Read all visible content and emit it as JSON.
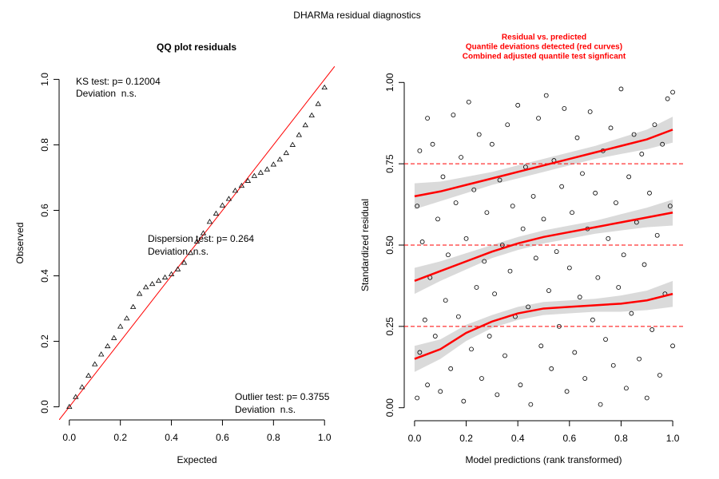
{
  "title": "DHARMa residual diagnostics",
  "chart_data": [
    {
      "type": "qq",
      "title": "QQ plot residuals",
      "x_label": "Expected",
      "y_label": "Observed",
      "color": "#000000",
      "reference_color": "#ff0000",
      "xlim": [
        -0.04,
        1.04
      ],
      "ylim": [
        -0.04,
        1.04
      ],
      "xticks": [
        {
          "value": 0,
          "label": "0.0"
        },
        {
          "value": 0.2,
          "label": "0.2"
        },
        {
          "value": 0.4,
          "label": "0.4"
        },
        {
          "value": 0.6,
          "label": "0.6"
        },
        {
          "value": 0.8,
          "label": "0.8"
        },
        {
          "value": 1,
          "label": "1.0"
        }
      ],
      "yticks": [
        {
          "value": 0,
          "label": "0.0"
        },
        {
          "value": 0.2,
          "label": "0.2"
        },
        {
          "value": 0.4,
          "label": "0.4"
        },
        {
          "value": 0.6,
          "label": "0.6"
        },
        {
          "value": 0.8,
          "label": "0.8"
        },
        {
          "value": 1,
          "label": "1.0"
        }
      ],
      "x": [
        0,
        0.025,
        0.05,
        0.075,
        0.1,
        0.125,
        0.15,
        0.175,
        0.2,
        0.225,
        0.25,
        0.275,
        0.3,
        0.325,
        0.35,
        0.375,
        0.4,
        0.425,
        0.45,
        0.475,
        0.5,
        0.525,
        0.55,
        0.575,
        0.6,
        0.625,
        0.65,
        0.675,
        0.7,
        0.725,
        0.75,
        0.775,
        0.8,
        0.825,
        0.85,
        0.875,
        0.9,
        0.925,
        0.95,
        0.975,
        1
      ],
      "values": [
        0,
        0.03,
        0.06,
        0.095,
        0.13,
        0.16,
        0.185,
        0.21,
        0.245,
        0.27,
        0.305,
        0.345,
        0.365,
        0.375,
        0.385,
        0.395,
        0.405,
        0.42,
        0.44,
        0.47,
        0.505,
        0.53,
        0.565,
        0.59,
        0.615,
        0.635,
        0.66,
        0.675,
        0.69,
        0.705,
        0.715,
        0.725,
        0.74,
        0.755,
        0.775,
        0.8,
        0.83,
        0.86,
        0.89,
        0.925,
        0.975
      ],
      "annotations": [
        "KS test: p= 0.12004",
        "Deviation  n.s.",
        "Dispersion test: p= 0.264",
        "Deviation  n.s.",
        "Outlier test: p= 0.3755",
        "Deviation  n.s."
      ]
    },
    {
      "type": "scatter",
      "title_lines": [
        "Residual vs. predicted",
        "Quantile deviations detected (red curves)",
        "Combined adjusted quantile test signficant"
      ],
      "title_color": "#ff0000",
      "x_label": "Model predictions (rank transformed)",
      "y_label": "Standardized residual",
      "color": "#000000",
      "curve_color": "#ff0000",
      "band_color": "#d3d3d3",
      "xlim": [
        -0.04,
        1.04
      ],
      "ylim": [
        -0.04,
        1.04
      ],
      "xticks": [
        {
          "value": 0,
          "label": "0.0"
        },
        {
          "value": 0.2,
          "label": "0.2"
        },
        {
          "value": 0.4,
          "label": "0.4"
        },
        {
          "value": 0.6,
          "label": "0.6"
        },
        {
          "value": 0.8,
          "label": "0.8"
        },
        {
          "value": 1,
          "label": "1.0"
        }
      ],
      "yticks": [
        {
          "value": 0,
          "label": "0.00"
        },
        {
          "value": 0.25,
          "label": "0.25"
        },
        {
          "value": 0.5,
          "label": "0.50"
        },
        {
          "value": 0.75,
          "label": "0.75"
        },
        {
          "value": 1,
          "label": "1.00"
        }
      ],
      "hlines": [
        0.25,
        0.5,
        0.75
      ],
      "x": [
        0.01,
        0.01,
        0.02,
        0.02,
        0.03,
        0.04,
        0.05,
        0.05,
        0.06,
        0.07,
        0.08,
        0.09,
        0.1,
        0.11,
        0.12,
        0.13,
        0.14,
        0.15,
        0.16,
        0.17,
        0.18,
        0.19,
        0.2,
        0.21,
        0.22,
        0.23,
        0.24,
        0.25,
        0.26,
        0.27,
        0.28,
        0.29,
        0.3,
        0.31,
        0.32,
        0.33,
        0.34,
        0.35,
        0.36,
        0.37,
        0.38,
        0.39,
        0.4,
        0.41,
        0.42,
        0.43,
        0.44,
        0.45,
        0.46,
        0.47,
        0.48,
        0.49,
        0.5,
        0.51,
        0.52,
        0.53,
        0.54,
        0.55,
        0.56,
        0.57,
        0.58,
        0.59,
        0.6,
        0.61,
        0.62,
        0.63,
        0.64,
        0.65,
        0.66,
        0.67,
        0.68,
        0.69,
        0.7,
        0.71,
        0.72,
        0.73,
        0.74,
        0.75,
        0.76,
        0.77,
        0.78,
        0.79,
        0.8,
        0.81,
        0.82,
        0.83,
        0.84,
        0.85,
        0.86,
        0.87,
        0.88,
        0.89,
        0.9,
        0.91,
        0.92,
        0.93,
        0.94,
        0.95,
        0.96,
        0.97,
        0.98,
        0.99,
        1,
        1
      ],
      "values": [
        0.62,
        0.03,
        0.79,
        0.17,
        0.51,
        0.27,
        0.89,
        0.07,
        0.4,
        0.81,
        0.22,
        0.58,
        0.05,
        0.71,
        0.33,
        0.47,
        0.12,
        0.9,
        0.63,
        0.28,
        0.77,
        0.02,
        0.52,
        0.94,
        0.18,
        0.67,
        0.37,
        0.84,
        0.09,
        0.45,
        0.6,
        0.22,
        0.81,
        0.35,
        0.04,
        0.7,
        0.5,
        0.16,
        0.87,
        0.42,
        0.62,
        0.28,
        0.93,
        0.07,
        0.55,
        0.74,
        0.31,
        0.01,
        0.65,
        0.46,
        0.89,
        0.19,
        0.58,
        0.96,
        0.36,
        0.12,
        0.76,
        0.48,
        0.25,
        0.68,
        0.92,
        0.05,
        0.43,
        0.6,
        0.17,
        0.83,
        0.34,
        0.72,
        0.09,
        0.55,
        0.91,
        0.27,
        0.66,
        0.4,
        0.01,
        0.79,
        0.21,
        0.52,
        0.86,
        0.13,
        0.63,
        0.37,
        0.98,
        0.47,
        0.06,
        0.71,
        0.29,
        0.84,
        0.57,
        0.15,
        0.78,
        0.44,
        0.03,
        0.66,
        0.24,
        0.87,
        0.53,
        0.1,
        0.81,
        0.35,
        0.95,
        0.62,
        0.97,
        0.19
      ],
      "curves": {
        "x": [
          0,
          0.1,
          0.2,
          0.3,
          0.4,
          0.5,
          0.6,
          0.7,
          0.8,
          0.9,
          1
        ],
        "series": [
          {
            "values": [
              0.15,
              0.18,
              0.23,
              0.265,
              0.29,
              0.305,
              0.31,
              0.315,
              0.32,
              0.33,
              0.35
            ],
            "lower": [
              0.11,
              0.15,
              0.205,
              0.245,
              0.27,
              0.285,
              0.29,
              0.295,
              0.295,
              0.3,
              0.31
            ],
            "upper": [
              0.19,
              0.21,
              0.255,
              0.285,
              0.31,
              0.325,
              0.33,
              0.335,
              0.345,
              0.36,
              0.39
            ]
          },
          {
            "values": [
              0.39,
              0.42,
              0.45,
              0.48,
              0.505,
              0.525,
              0.54,
              0.555,
              0.57,
              0.585,
              0.6
            ],
            "lower": [
              0.35,
              0.39,
              0.425,
              0.46,
              0.485,
              0.505,
              0.52,
              0.535,
              0.545,
              0.555,
              0.56
            ],
            "upper": [
              0.43,
              0.45,
              0.475,
              0.5,
              0.525,
              0.545,
              0.56,
              0.575,
              0.595,
              0.615,
              0.64
            ]
          },
          {
            "values": [
              0.65,
              0.665,
              0.685,
              0.705,
              0.725,
              0.745,
              0.765,
              0.785,
              0.805,
              0.825,
              0.855
            ],
            "lower": [
              0.61,
              0.635,
              0.66,
              0.685,
              0.705,
              0.725,
              0.745,
              0.765,
              0.78,
              0.795,
              0.815
            ],
            "upper": [
              0.69,
              0.695,
              0.71,
              0.725,
              0.745,
              0.765,
              0.785,
              0.805,
              0.83,
              0.855,
              0.895
            ]
          }
        ]
      }
    }
  ]
}
